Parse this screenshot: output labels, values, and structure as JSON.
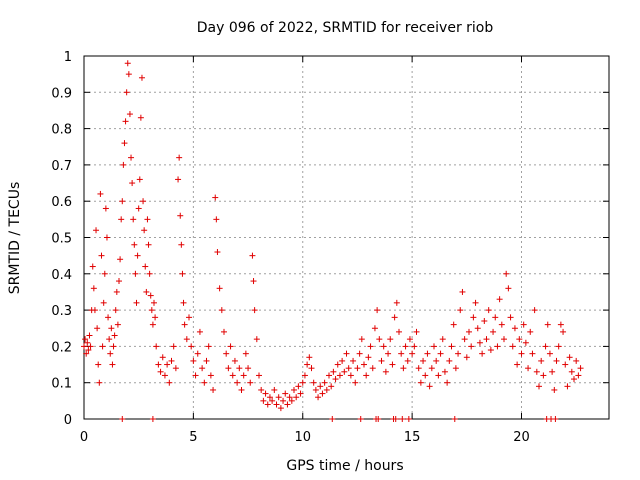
{
  "chart_data": {
    "type": "scatter",
    "marker": "+",
    "color": "#e00000",
    "title": "Day 096 of 2022, SRMTID for receiver riob",
    "xlabel": "GPS time / hours",
    "ylabel": "SRMTID / TECUs",
    "xlim": [
      0,
      24
    ],
    "ylim": [
      0,
      1
    ],
    "xticks": [
      0,
      5,
      10,
      15,
      20
    ],
    "xtick_labels": [
      "0",
      "5",
      "10",
      "15",
      "20"
    ],
    "yticks": [
      0,
      0.1,
      0.2,
      0.3,
      0.4,
      0.5,
      0.6,
      0.7,
      0.8,
      0.9,
      1
    ],
    "ytick_labels": [
      "0",
      "0.1",
      "0.2",
      "0.3",
      "0.4",
      "0.5",
      "0.6",
      "0.7",
      "0.8",
      "0.9",
      "1"
    ],
    "grid": true,
    "series": [
      {
        "name": "SRMTID",
        "points": [
          [
            0.0,
            0.2
          ],
          [
            0.05,
            0.22
          ],
          [
            0.1,
            0.18
          ],
          [
            0.15,
            0.21
          ],
          [
            0.2,
            0.19
          ],
          [
            0.25,
            0.23
          ],
          [
            0.3,
            0.2
          ],
          [
            0.35,
            0.3
          ],
          [
            0.4,
            0.42
          ],
          [
            0.45,
            0.36
          ],
          [
            0.5,
            0.3
          ],
          [
            0.55,
            0.52
          ],
          [
            0.6,
            0.25
          ],
          [
            0.65,
            0.15
          ],
          [
            0.7,
            0.1
          ],
          [
            0.75,
            0.62
          ],
          [
            0.8,
            0.45
          ],
          [
            0.85,
            0.2
          ],
          [
            0.9,
            0.32
          ],
          [
            0.95,
            0.4
          ],
          [
            1.0,
            0.58
          ],
          [
            1.05,
            0.5
          ],
          [
            1.1,
            0.28
          ],
          [
            1.15,
            0.22
          ],
          [
            1.2,
            0.18
          ],
          [
            1.25,
            0.25
          ],
          [
            1.3,
            0.15
          ],
          [
            1.35,
            0.2
          ],
          [
            1.4,
            0.23
          ],
          [
            1.45,
            0.3
          ],
          [
            1.5,
            0.35
          ],
          [
            1.55,
            0.26
          ],
          [
            1.6,
            0.38
          ],
          [
            1.65,
            0.44
          ],
          [
            1.7,
            0.55
          ],
          [
            1.75,
            0.6
          ],
          [
            1.8,
            0.7
          ],
          [
            1.85,
            0.76
          ],
          [
            1.9,
            0.82
          ],
          [
            1.95,
            0.9
          ],
          [
            2.0,
            0.98
          ],
          [
            2.05,
            0.95
          ],
          [
            2.1,
            0.84
          ],
          [
            2.15,
            0.72
          ],
          [
            2.2,
            0.65
          ],
          [
            2.25,
            0.55
          ],
          [
            2.3,
            0.48
          ],
          [
            2.35,
            0.4
          ],
          [
            2.4,
            0.32
          ],
          [
            2.45,
            0.45
          ],
          [
            2.5,
            0.58
          ],
          [
            2.55,
            0.66
          ],
          [
            2.6,
            0.83
          ],
          [
            2.65,
            0.94
          ],
          [
            2.7,
            0.6
          ],
          [
            2.75,
            0.52
          ],
          [
            2.8,
            0.42
          ],
          [
            2.85,
            0.35
          ],
          [
            2.9,
            0.55
          ],
          [
            2.95,
            0.48
          ],
          [
            3.0,
            0.4
          ],
          [
            3.05,
            0.34
          ],
          [
            3.1,
            0.3
          ],
          [
            3.15,
            0.26
          ],
          [
            3.2,
            0.32
          ],
          [
            3.25,
            0.28
          ],
          [
            3.3,
            0.2
          ],
          [
            3.4,
            0.15
          ],
          [
            3.5,
            0.13
          ],
          [
            3.6,
            0.17
          ],
          [
            3.7,
            0.12
          ],
          [
            3.8,
            0.15
          ],
          [
            3.9,
            0.1
          ],
          [
            4.0,
            0.16
          ],
          [
            4.1,
            0.2
          ],
          [
            4.2,
            0.14
          ],
          [
            4.3,
            0.66
          ],
          [
            4.35,
            0.72
          ],
          [
            4.4,
            0.56
          ],
          [
            4.45,
            0.48
          ],
          [
            4.5,
            0.4
          ],
          [
            4.55,
            0.32
          ],
          [
            4.6,
            0.26
          ],
          [
            4.7,
            0.22
          ],
          [
            4.8,
            0.28
          ],
          [
            4.9,
            0.2
          ],
          [
            5.0,
            0.16
          ],
          [
            5.1,
            0.12
          ],
          [
            5.2,
            0.18
          ],
          [
            5.3,
            0.24
          ],
          [
            5.4,
            0.14
          ],
          [
            5.5,
            0.1
          ],
          [
            5.6,
            0.16
          ],
          [
            5.7,
            0.2
          ],
          [
            5.8,
            0.12
          ],
          [
            5.9,
            0.08
          ],
          [
            6.0,
            0.61
          ],
          [
            6.05,
            0.55
          ],
          [
            6.1,
            0.46
          ],
          [
            6.2,
            0.36
          ],
          [
            6.3,
            0.3
          ],
          [
            6.4,
            0.24
          ],
          [
            6.5,
            0.18
          ],
          [
            6.6,
            0.14
          ],
          [
            6.7,
            0.2
          ],
          [
            6.8,
            0.12
          ],
          [
            6.9,
            0.16
          ],
          [
            7.0,
            0.1
          ],
          [
            7.1,
            0.14
          ],
          [
            7.2,
            0.08
          ],
          [
            7.3,
            0.12
          ],
          [
            7.4,
            0.18
          ],
          [
            7.5,
            0.14
          ],
          [
            7.6,
            0.1
          ],
          [
            7.7,
            0.45
          ],
          [
            7.75,
            0.38
          ],
          [
            7.8,
            0.3
          ],
          [
            7.9,
            0.22
          ],
          [
            8.0,
            0.12
          ],
          [
            8.1,
            0.08
          ],
          [
            8.2,
            0.05
          ],
          [
            8.3,
            0.07
          ],
          [
            8.4,
            0.04
          ],
          [
            8.5,
            0.06
          ],
          [
            8.6,
            0.05
          ],
          [
            8.7,
            0.08
          ],
          [
            8.8,
            0.04
          ],
          [
            8.9,
            0.06
          ],
          [
            9.0,
            0.03
          ],
          [
            9.1,
            0.05
          ],
          [
            9.2,
            0.07
          ],
          [
            9.3,
            0.04
          ],
          [
            9.4,
            0.06
          ],
          [
            9.5,
            0.05
          ],
          [
            9.6,
            0.08
          ],
          [
            9.7,
            0.06
          ],
          [
            9.8,
            0.09
          ],
          [
            9.9,
            0.07
          ],
          [
            10.0,
            0.1
          ],
          [
            10.1,
            0.12
          ],
          [
            10.2,
            0.15
          ],
          [
            10.3,
            0.17
          ],
          [
            10.4,
            0.14
          ],
          [
            10.5,
            0.1
          ],
          [
            10.6,
            0.08
          ],
          [
            10.7,
            0.06
          ],
          [
            10.8,
            0.09
          ],
          [
            10.9,
            0.07
          ],
          [
            11.0,
            0.1
          ],
          [
            11.1,
            0.08
          ],
          [
            11.2,
            0.12
          ],
          [
            11.3,
            0.09
          ],
          [
            11.4,
            0.13
          ],
          [
            11.5,
            0.11
          ],
          [
            11.6,
            0.15
          ],
          [
            11.7,
            0.12
          ],
          [
            11.8,
            0.16
          ],
          [
            11.9,
            0.13
          ],
          [
            12.0,
            0.18
          ],
          [
            12.1,
            0.14
          ],
          [
            12.2,
            0.12
          ],
          [
            12.3,
            0.16
          ],
          [
            12.4,
            0.1
          ],
          [
            12.5,
            0.14
          ],
          [
            12.6,
            0.18
          ],
          [
            12.7,
            0.22
          ],
          [
            12.8,
            0.15
          ],
          [
            12.9,
            0.12
          ],
          [
            13.0,
            0.17
          ],
          [
            13.1,
            0.2
          ],
          [
            13.2,
            0.14
          ],
          [
            13.3,
            0.25
          ],
          [
            13.4,
            0.3
          ],
          [
            13.5,
            0.22
          ],
          [
            13.6,
            0.16
          ],
          [
            13.7,
            0.2
          ],
          [
            13.8,
            0.13
          ],
          [
            13.9,
            0.18
          ],
          [
            14.0,
            0.22
          ],
          [
            14.1,
            0.15
          ],
          [
            14.2,
            0.28
          ],
          [
            14.3,
            0.32
          ],
          [
            14.4,
            0.24
          ],
          [
            14.5,
            0.18
          ],
          [
            14.6,
            0.14
          ],
          [
            14.7,
            0.2
          ],
          [
            14.8,
            0.16
          ],
          [
            14.9,
            0.22
          ],
          [
            15.0,
            0.18
          ],
          [
            15.1,
            0.2
          ],
          [
            15.2,
            0.24
          ],
          [
            15.3,
            0.14
          ],
          [
            15.4,
            0.1
          ],
          [
            15.5,
            0.16
          ],
          [
            15.6,
            0.12
          ],
          [
            15.7,
            0.18
          ],
          [
            15.8,
            0.09
          ],
          [
            15.9,
            0.14
          ],
          [
            16.0,
            0.2
          ],
          [
            16.1,
            0.16
          ],
          [
            16.2,
            0.12
          ],
          [
            16.3,
            0.18
          ],
          [
            16.4,
            0.22
          ],
          [
            16.5,
            0.13
          ],
          [
            16.6,
            0.1
          ],
          [
            16.7,
            0.16
          ],
          [
            16.8,
            0.2
          ],
          [
            16.9,
            0.26
          ],
          [
            17.0,
            0.14
          ],
          [
            17.1,
            0.18
          ],
          [
            17.2,
            0.3
          ],
          [
            17.3,
            0.35
          ],
          [
            17.4,
            0.22
          ],
          [
            17.5,
            0.17
          ],
          [
            17.6,
            0.24
          ],
          [
            17.7,
            0.2
          ],
          [
            17.8,
            0.28
          ],
          [
            17.9,
            0.32
          ],
          [
            18.0,
            0.25
          ],
          [
            18.1,
            0.21
          ],
          [
            18.2,
            0.18
          ],
          [
            18.3,
            0.27
          ],
          [
            18.4,
            0.22
          ],
          [
            18.5,
            0.3
          ],
          [
            18.6,
            0.19
          ],
          [
            18.7,
            0.24
          ],
          [
            18.8,
            0.28
          ],
          [
            18.9,
            0.2
          ],
          [
            19.0,
            0.33
          ],
          [
            19.1,
            0.26
          ],
          [
            19.2,
            0.22
          ],
          [
            19.3,
            0.4
          ],
          [
            19.4,
            0.36
          ],
          [
            19.5,
            0.28
          ],
          [
            19.6,
            0.2
          ],
          [
            19.7,
            0.25
          ],
          [
            19.8,
            0.15
          ],
          [
            19.9,
            0.22
          ],
          [
            20.0,
            0.18
          ],
          [
            20.1,
            0.26
          ],
          [
            20.2,
            0.21
          ],
          [
            20.3,
            0.14
          ],
          [
            20.4,
            0.24
          ],
          [
            20.5,
            0.18
          ],
          [
            20.6,
            0.3
          ],
          [
            20.7,
            0.13
          ],
          [
            20.8,
            0.09
          ],
          [
            20.9,
            0.16
          ],
          [
            21.0,
            0.12
          ],
          [
            21.1,
            0.2
          ],
          [
            21.2,
            0.26
          ],
          [
            21.3,
            0.18
          ],
          [
            21.4,
            0.13
          ],
          [
            21.5,
            0.08
          ],
          [
            21.6,
            0.16
          ],
          [
            21.7,
            0.2
          ],
          [
            21.8,
            0.26
          ],
          [
            21.9,
            0.24
          ],
          [
            22.0,
            0.15
          ],
          [
            22.1,
            0.09
          ],
          [
            22.2,
            0.17
          ],
          [
            22.3,
            0.13
          ],
          [
            22.4,
            0.11
          ],
          [
            22.5,
            0.16
          ],
          [
            22.6,
            0.12
          ],
          [
            22.7,
            0.14
          ],
          [
            1.75,
            0.0
          ],
          [
            3.15,
            0.0
          ],
          [
            11.35,
            0.0
          ],
          [
            12.65,
            0.0
          ],
          [
            13.35,
            0.0
          ],
          [
            13.45,
            0.0
          ],
          [
            14.15,
            0.0
          ],
          [
            14.25,
            0.0
          ],
          [
            14.55,
            0.0
          ],
          [
            14.85,
            0.0
          ],
          [
            16.95,
            0.0
          ],
          [
            21.15,
            0.0
          ],
          [
            21.35,
            0.0
          ],
          [
            21.55,
            0.0
          ]
        ]
      }
    ]
  }
}
